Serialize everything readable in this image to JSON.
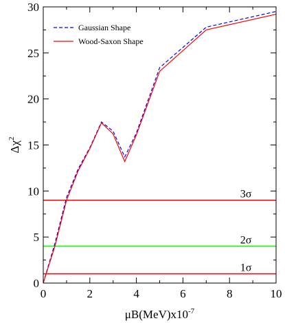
{
  "chart_data": {
    "type": "line",
    "title": "",
    "xlabel": "μB(MeV)x10",
    "xlabel_exponent": "-7",
    "ylabel": "Δχ",
    "ylabel_exponent": "2",
    "xlim": [
      0,
      10
    ],
    "ylim": [
      0,
      30
    ],
    "xticks": [
      0,
      2,
      4,
      6,
      8,
      10
    ],
    "yticks": [
      0,
      5,
      10,
      15,
      20,
      25,
      30
    ],
    "grid": false,
    "legend_position": "top-left",
    "series": [
      {
        "name": "Gaussian Shape",
        "style": "dashed",
        "color": "#0000ff",
        "x": [
          0,
          0.5,
          1.0,
          1.5,
          2.0,
          2.5,
          3.0,
          3.5,
          4.0,
          5.0,
          7.0,
          10.0
        ],
        "y": [
          0.0,
          4.3,
          9.3,
          12.4,
          14.7,
          17.5,
          16.5,
          13.7,
          16.3,
          23.4,
          27.8,
          29.5
        ]
      },
      {
        "name": "Wood-Saxon Shape",
        "style": "solid",
        "color": "#ff0000",
        "x": [
          0,
          0.5,
          1.0,
          1.5,
          2.0,
          2.5,
          3.0,
          3.5,
          4.0,
          5.0,
          7.0,
          10.0
        ],
        "y": [
          0.0,
          4.0,
          9.0,
          12.2,
          14.6,
          17.4,
          16.2,
          13.2,
          16.1,
          23.0,
          27.5,
          29.2
        ]
      }
    ],
    "reference_lines": [
      {
        "label": "3σ",
        "y": 9,
        "color": "#ff0000"
      },
      {
        "label": "2σ",
        "y": 4,
        "color": "#00ff00"
      },
      {
        "label": "1σ",
        "y": 1,
        "color": "#ff0000"
      }
    ]
  }
}
